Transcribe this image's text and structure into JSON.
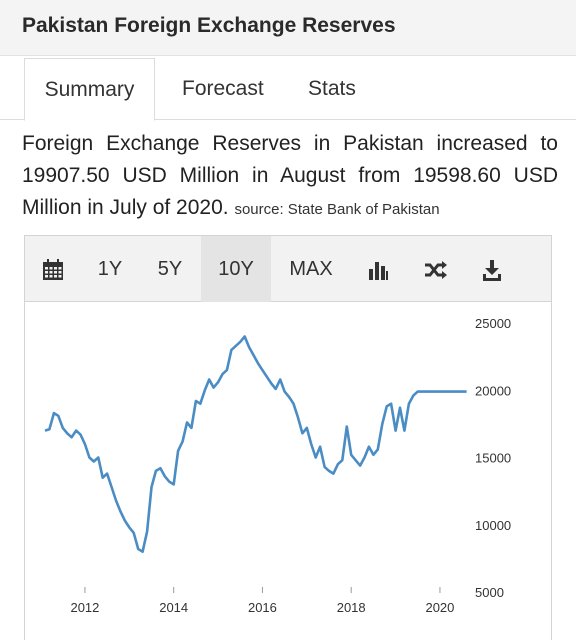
{
  "page": {
    "title": "Pakistan Foreign Exchange Reserves"
  },
  "tabs": [
    {
      "label": "Summary",
      "active": true
    },
    {
      "label": "Forecast",
      "active": false
    },
    {
      "label": "Stats",
      "active": false
    }
  ],
  "summary": {
    "text": "Foreign Exchange Reserves in Pakistan increased to 19907.50 USD Million in August from 19598.60 USD Million in July of 2020.",
    "source": "source: State Bank of Pakistan"
  },
  "toolbar": {
    "calendar_icon": "calendar-icon",
    "ranges": [
      "1Y",
      "5Y",
      "10Y",
      "MAX"
    ],
    "selected_range": "10Y",
    "chart_type_icon": "bar-chart-icon",
    "compare_icon": "shuffle-icon",
    "download_icon": "download-icon"
  },
  "colors": {
    "line": "#4a8cc4",
    "toolbar_bg": "#f2f2f2",
    "selected_bg": "#e4e4e4"
  },
  "chart_data": {
    "type": "line",
    "title": "",
    "xlabel": "",
    "ylabel": "",
    "x_ticks": [
      "2012",
      "2014",
      "2016",
      "2018",
      "2020"
    ],
    "y_ticks": [
      5000,
      10000,
      15000,
      20000,
      25000
    ],
    "ylim": [
      5000,
      25000
    ],
    "xlim": [
      2011.1,
      2020.7
    ],
    "grid": false,
    "series": [
      {
        "name": "",
        "x": [
          2011.1,
          2011.2,
          2011.3,
          2011.4,
          2011.5,
          2011.6,
          2011.7,
          2011.8,
          2011.9,
          2012.0,
          2012.1,
          2012.2,
          2012.3,
          2012.4,
          2012.5,
          2012.6,
          2012.7,
          2012.8,
          2012.9,
          2013.0,
          2013.1,
          2013.2,
          2013.3,
          2013.4,
          2013.5,
          2013.6,
          2013.7,
          2013.8,
          2013.9,
          2014.0,
          2014.1,
          2014.2,
          2014.3,
          2014.4,
          2014.5,
          2014.6,
          2014.7,
          2014.8,
          2014.9,
          2015.0,
          2015.1,
          2015.2,
          2015.3,
          2015.4,
          2015.5,
          2015.6,
          2015.7,
          2015.8,
          2015.9,
          2016.0,
          2016.1,
          2016.2,
          2016.3,
          2016.4,
          2016.5,
          2016.6,
          2016.7,
          2016.8,
          2016.9,
          2017.0,
          2017.1,
          2017.2,
          2017.3,
          2017.4,
          2017.5,
          2017.6,
          2017.7,
          2017.8,
          2017.9,
          2018.0,
          2018.1,
          2018.2,
          2018.3,
          2018.4,
          2018.5,
          2018.6,
          2018.7,
          2018.8,
          2018.9,
          2019.0,
          2019.1,
          2019.2,
          2019.3,
          2019.4,
          2019.5,
          2019.6,
          2019.7,
          2019.8,
          2019.9,
          2020.0,
          2020.1,
          2020.2,
          2020.3,
          2020.4,
          2020.5,
          2020.6
        ],
        "y": [
          17000,
          17100,
          18300,
          18100,
          17200,
          16800,
          16500,
          17000,
          16700,
          16000,
          15000,
          14700,
          15000,
          13500,
          13800,
          12800,
          11800,
          11000,
          10300,
          9800,
          9400,
          8200,
          8000,
          9500,
          12800,
          14000,
          14200,
          13600,
          13200,
          13000,
          15500,
          16200,
          17600,
          17200,
          19200,
          19000,
          20000,
          20800,
          20200,
          20600,
          21200,
          21500,
          23000,
          23300,
          23600,
          24000,
          23200,
          22600,
          22000,
          21500,
          21000,
          20500,
          20100,
          20800,
          19900,
          19500,
          19000,
          18000,
          16800,
          17200,
          16000,
          15000,
          15800,
          14300,
          14000,
          13800,
          14500,
          14800,
          17300,
          15200,
          14800,
          14400,
          15000,
          15800,
          15200,
          15600,
          17500,
          18800,
          19000,
          17000,
          18700,
          17000,
          19000,
          19600,
          19900,
          19900,
          19900,
          19900,
          19900,
          19900,
          19900,
          19900,
          19900,
          19900,
          19900,
          19900
        ]
      }
    ]
  }
}
